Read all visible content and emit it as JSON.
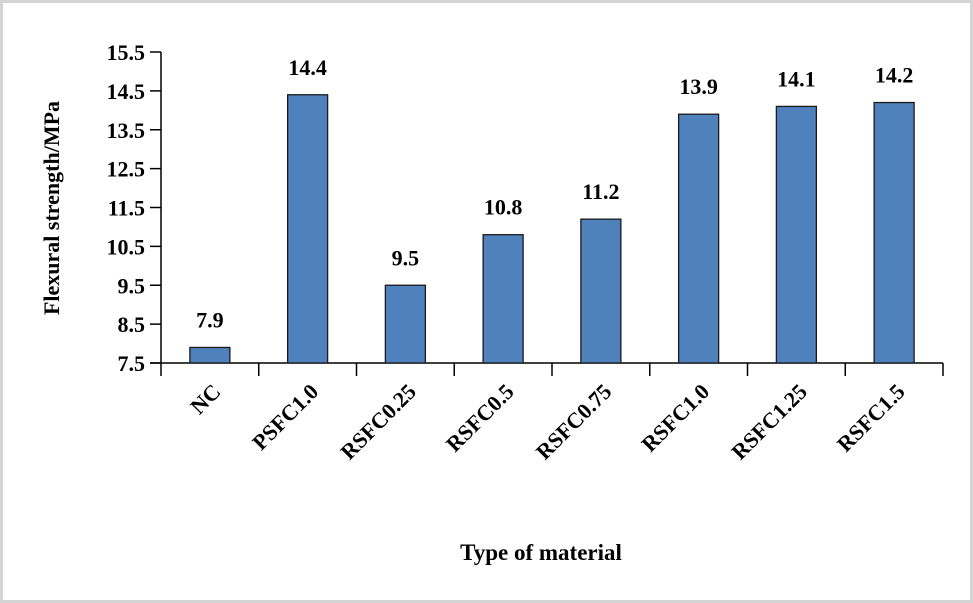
{
  "chart_data": {
    "type": "bar",
    "title": "",
    "xlabel": "Type of material",
    "ylabel": "Flexural strength/MPa",
    "categories": [
      "NC",
      "PSFC1.0",
      "RSFC0.25",
      "RSFC0.5",
      "RSFC0.75",
      "RSFC1.0",
      "RSFC1.25",
      "RSFC1.5"
    ],
    "values": [
      7.9,
      14.4,
      9.5,
      10.8,
      11.2,
      13.9,
      14.1,
      14.2
    ],
    "data_labels": [
      "7.9",
      "14.4",
      "9.5",
      "10.8",
      "11.2",
      "13.9",
      "14.1",
      "14.2"
    ],
    "ylim": [
      7.5,
      15.5
    ],
    "yticks": [
      "7.5",
      "8.5",
      "9.5",
      "10.5",
      "11.5",
      "12.5",
      "13.5",
      "14.5",
      "15.5"
    ],
    "grid": false,
    "legend": "none",
    "colors": {
      "bar": "#4f81bd",
      "bar_edge": "#1a1a1a",
      "axis": "#000000"
    }
  }
}
